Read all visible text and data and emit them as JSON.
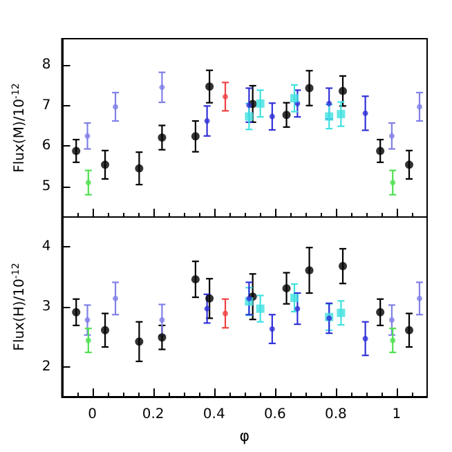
{
  "chart_data": [
    {
      "type": "scatter",
      "ylabel": "Flux(M)/10$^{-12}$",
      "xlim": [
        -0.1,
        1.1
      ],
      "xticks": [
        0,
        0.2,
        0.4,
        0.6,
        0.8,
        1
      ],
      "ylim": [
        4.25,
        8.65
      ],
      "yticks": [
        5,
        6,
        7,
        8
      ],
      "tick_labels": "y",
      "marker": "circle",
      "series": [
        {
          "color": "#000000",
          "x": [
            -0.053,
            0.042,
            0.154,
            0.229,
            0.339,
            0.385,
            0.527,
            0.638,
            0.713,
            0.823,
            0.946,
            1.041
          ],
          "values": [
            5.88,
            5.54,
            5.45,
            6.21,
            6.24,
            7.47,
            7.04,
            6.77,
            7.43,
            7.36,
            5.88,
            5.54
          ],
          "errors": [
            0.28,
            0.35,
            0.4,
            0.3,
            0.38,
            0.4,
            0.45,
            0.3,
            0.43,
            0.37,
            0.28,
            0.35
          ]
        },
        {
          "color": "#8080e8",
          "x": [
            -0.016,
            0.076,
            0.229,
            0.984,
            1.075
          ],
          "values": [
            6.25,
            6.97,
            7.45,
            6.25,
            6.97
          ],
          "errors": [
            0.32,
            0.35,
            0.37,
            0.32,
            0.35
          ]
        },
        {
          "color": "#3030d8",
          "x": [
            0.377,
            0.515,
            0.591,
            0.674,
            0.778,
            0.897
          ],
          "values": [
            6.62,
            7.01,
            6.73,
            7.05,
            7.05,
            6.81
          ],
          "errors": [
            0.37,
            0.42,
            0.33,
            0.33,
            0.38,
            0.42
          ]
        },
        {
          "color": "#40e0e0",
          "marker": "square",
          "x": [
            0.515,
            0.552,
            0.664,
            0.778,
            0.817
          ],
          "values": [
            6.73,
            7.05,
            7.18,
            6.73,
            6.79
          ],
          "errors": [
            0.32,
            0.33,
            0.33,
            0.3,
            0.3
          ]
        },
        {
          "color": "#50e050",
          "x": [
            -0.013,
            0.987
          ],
          "values": [
            5.1,
            5.1
          ],
          "errors": [
            0.3,
            0.3
          ]
        },
        {
          "color": "#f04040",
          "x": [
            0.437
          ],
          "values": [
            7.22
          ],
          "errors": [
            0.35
          ]
        }
      ]
    },
    {
      "type": "scatter",
      "xlabel": "φ",
      "ylabel": "Flux(H)/10$^{-12}$",
      "xlim": [
        -0.1,
        1.1
      ],
      "xticks": [
        0,
        0.2,
        0.4,
        0.6,
        0.8,
        1
      ],
      "ylim": [
        1.5,
        4.5
      ],
      "yticks": [
        2,
        3,
        4
      ],
      "marker": "circle",
      "series": [
        {
          "color": "#000000",
          "x": [
            -0.053,
            0.042,
            0.154,
            0.229,
            0.339,
            0.385,
            0.527,
            0.638,
            0.713,
            0.823,
            0.946,
            1.041
          ],
          "values": [
            2.91,
            2.61,
            2.42,
            2.49,
            3.46,
            3.14,
            3.17,
            3.31,
            3.61,
            3.68,
            2.91,
            2.61
          ],
          "errors": [
            0.22,
            0.28,
            0.33,
            0.2,
            0.3,
            0.33,
            0.38,
            0.26,
            0.38,
            0.29,
            0.22,
            0.28
          ]
        },
        {
          "color": "#8080e8",
          "x": [
            -0.016,
            0.076,
            0.229,
            0.984,
            1.075
          ],
          "values": [
            2.78,
            3.14,
            2.78,
            2.78,
            3.14
          ],
          "errors": [
            0.25,
            0.27,
            0.26,
            0.25,
            0.27
          ]
        },
        {
          "color": "#40e0e0",
          "marker": "square",
          "x": [
            0.515,
            0.552,
            0.664,
            0.778,
            0.817
          ],
          "values": [
            3.09,
            2.97,
            3.15,
            2.83,
            2.9
          ],
          "errors": [
            0.23,
            0.22,
            0.23,
            0.22,
            0.2
          ]
        },
        {
          "color": "#3030d8",
          "x": [
            0.377,
            0.515,
            0.591,
            0.674,
            0.778,
            0.897
          ],
          "values": [
            2.97,
            3.14,
            2.63,
            2.97,
            2.81,
            2.47
          ],
          "errors": [
            0.24,
            0.27,
            0.24,
            0.26,
            0.25,
            0.28
          ]
        },
        {
          "color": "#50e050",
          "x": [
            -0.013,
            0.987
          ],
          "values": [
            2.44,
            2.44
          ],
          "errors": [
            0.2,
            0.2
          ]
        },
        {
          "color": "#f04040",
          "x": [
            0.437
          ],
          "values": [
            2.89
          ],
          "errors": [
            0.24
          ]
        }
      ]
    }
  ]
}
